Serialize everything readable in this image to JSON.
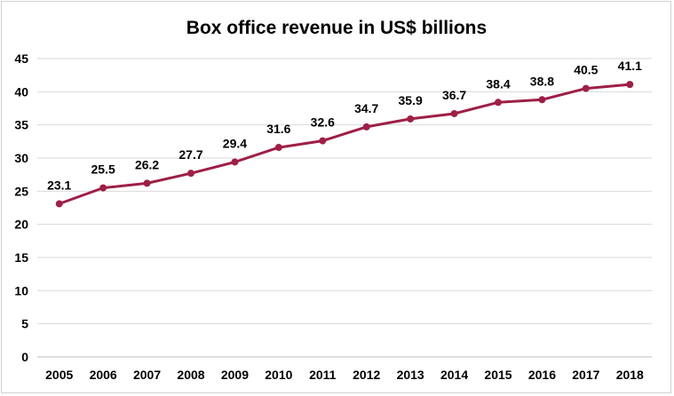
{
  "chart_data": {
    "type": "line",
    "title": "Box office revenue in US$ billions",
    "xlabel": "",
    "ylabel": "",
    "categories": [
      "2005",
      "2006",
      "2007",
      "2008",
      "2009",
      "2010",
      "2011",
      "2012",
      "2013",
      "2014",
      "2015",
      "2016",
      "2017",
      "2018"
    ],
    "series": [
      {
        "name": "Box office revenue",
        "values": [
          23.1,
          25.5,
          26.2,
          27.7,
          29.4,
          31.6,
          32.6,
          34.7,
          35.9,
          36.7,
          38.4,
          38.8,
          40.5,
          41.1
        ],
        "labels": [
          "23.1",
          "25.5",
          "26.2",
          "27.7",
          "29.4",
          "31.6",
          "32.6",
          "34.7",
          "35.9",
          "36.7",
          "38.4",
          "38.8",
          "40.5",
          "41.1"
        ]
      }
    ],
    "ylim": [
      0,
      45
    ],
    "yticks": [
      "0",
      "5",
      "10",
      "15",
      "20",
      "25",
      "30",
      "35",
      "40",
      "45"
    ],
    "grid": true,
    "legend": "none",
    "line_color": "#9e1f46"
  }
}
